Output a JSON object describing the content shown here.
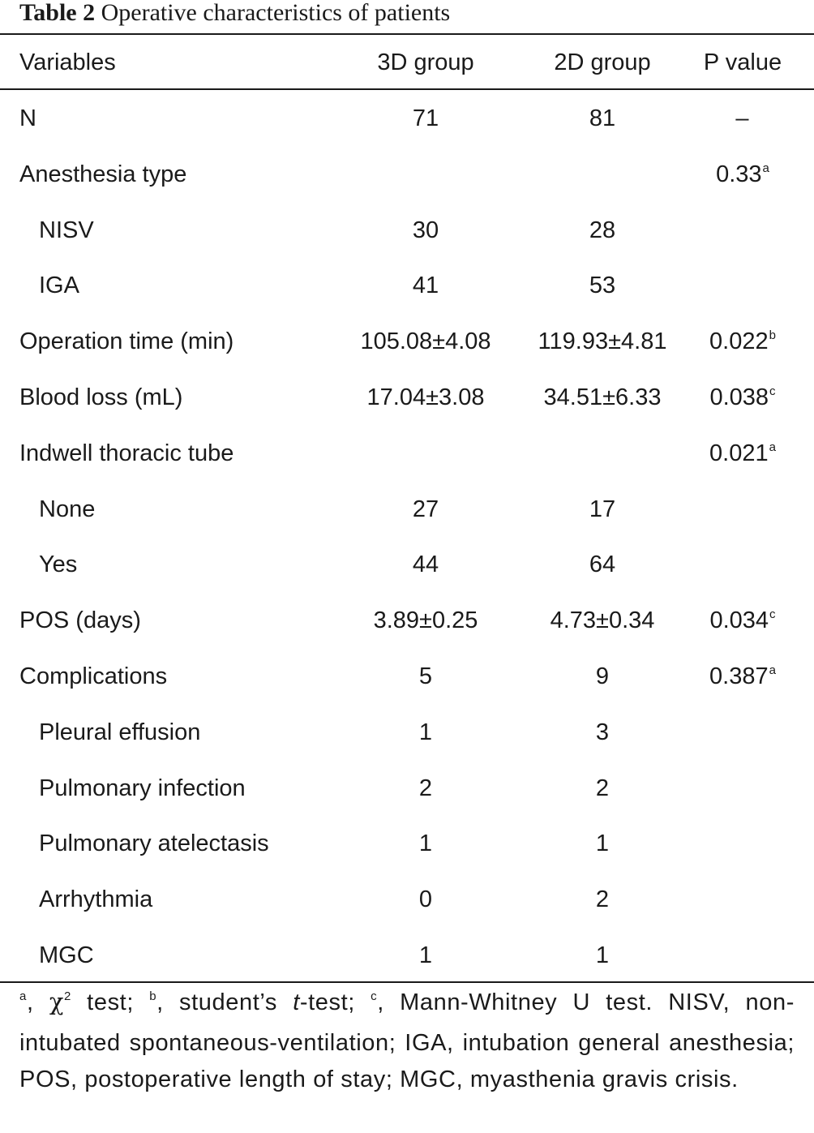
{
  "caption": {
    "label": "Table 2",
    "text": "Operative characteristics of patients"
  },
  "table": {
    "headers": [
      "Variables",
      "3D group",
      "2D group",
      "P value"
    ],
    "rows": [
      {
        "variable": "N",
        "g3d": "71",
        "g2d": "81",
        "p": "–",
        "p_sup": "",
        "indent": false
      },
      {
        "variable": "Anesthesia type",
        "g3d": "",
        "g2d": "",
        "p": "0.33",
        "p_sup": "a",
        "indent": false
      },
      {
        "variable": "NISV",
        "g3d": "30",
        "g2d": "28",
        "p": "",
        "p_sup": "",
        "indent": true
      },
      {
        "variable": "IGA",
        "g3d": "41",
        "g2d": "53",
        "p": "",
        "p_sup": "",
        "indent": true
      },
      {
        "variable": "Operation time (min)",
        "g3d": "105.08±4.08",
        "g2d": "119.93±4.81",
        "p": "0.022",
        "p_sup": "b",
        "indent": false
      },
      {
        "variable": "Blood loss (mL)",
        "g3d": "17.04±3.08",
        "g2d": "34.51±6.33",
        "p": "0.038",
        "p_sup": "c",
        "indent": false
      },
      {
        "variable": "Indwell thoracic tube",
        "g3d": "",
        "g2d": "",
        "p": "0.021",
        "p_sup": "a",
        "indent": false
      },
      {
        "variable": "None",
        "g3d": "27",
        "g2d": "17",
        "p": "",
        "p_sup": "",
        "indent": true
      },
      {
        "variable": "Yes",
        "g3d": "44",
        "g2d": "64",
        "p": "",
        "p_sup": "",
        "indent": true
      },
      {
        "variable": "POS (days)",
        "g3d": "3.89±0.25",
        "g2d": "4.73±0.34",
        "p": "0.034",
        "p_sup": "c",
        "indent": false
      },
      {
        "variable": "Complications",
        "g3d": "5",
        "g2d": "9",
        "p": "0.387",
        "p_sup": "a",
        "indent": false
      },
      {
        "variable": "Pleural effusion",
        "g3d": "1",
        "g2d": "3",
        "p": "",
        "p_sup": "",
        "indent": true
      },
      {
        "variable": "Pulmonary infection",
        "g3d": "2",
        "g2d": "2",
        "p": "",
        "p_sup": "",
        "indent": true
      },
      {
        "variable": "Pulmonary atelectasis",
        "g3d": "1",
        "g2d": "1",
        "p": "",
        "p_sup": "",
        "indent": true
      },
      {
        "variable": "Arrhythmia",
        "g3d": "0",
        "g2d": "2",
        "p": "",
        "p_sup": "",
        "indent": true
      },
      {
        "variable": "MGC",
        "g3d": "1",
        "g2d": "1",
        "p": "",
        "p_sup": "",
        "indent": true
      }
    ]
  },
  "footnote": {
    "a_mark": "a",
    "a_text_pre": ", ",
    "chi": "χ",
    "chi_sup": "2",
    "a_text_post": " test; ",
    "b_mark": "b",
    "b_text_pre": ", student’s ",
    "b_ital": "t",
    "b_text_post": "-test; ",
    "c_mark": "c",
    "c_text": ", Mann-Whitney U test. NISV, non-intubated spontaneous-ventilation; IGA, intubation general anesthesia; POS, postoperative length of stay; MGC, myasthenia gravis crisis."
  }
}
